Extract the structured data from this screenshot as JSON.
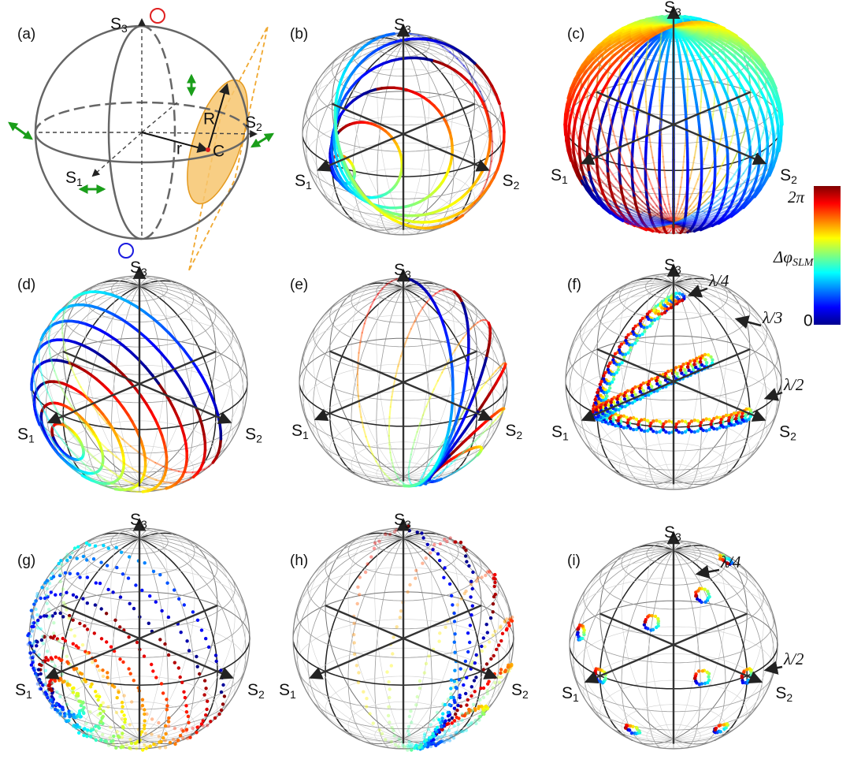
{
  "panels": [
    {
      "label": "(a)",
      "s1": {
        "base": "S",
        "sub": "1"
      },
      "s2": {
        "base": "S",
        "sub": "2"
      },
      "s3": {
        "base": "S",
        "sub": "3"
      },
      "annotations": [
        "R",
        "r",
        "C"
      ]
    },
    {
      "label": "(b)",
      "s1": {
        "base": "S",
        "sub": "1"
      },
      "s2": {
        "base": "S",
        "sub": "2"
      },
      "s3": {
        "base": "S",
        "sub": "3"
      }
    },
    {
      "label": "(c)",
      "s1": {
        "base": "S",
        "sub": "1"
      },
      "s2": {
        "base": "S",
        "sub": "2"
      },
      "s3": {
        "base": "S",
        "sub": "3"
      }
    },
    {
      "label": "(d)",
      "s1": {
        "base": "S",
        "sub": "1"
      },
      "s2": {
        "base": "S",
        "sub": "2"
      },
      "s3": {
        "base": "S",
        "sub": "3"
      }
    },
    {
      "label": "(e)",
      "s1": {
        "base": "S",
        "sub": "1"
      },
      "s2": {
        "base": "S",
        "sub": "2"
      },
      "s3": {
        "base": "S",
        "sub": "3"
      }
    },
    {
      "label": "(f)",
      "s1": {
        "base": "S",
        "sub": "1"
      },
      "s2": {
        "base": "S",
        "sub": "2"
      },
      "s3": {
        "base": "S",
        "sub": "3"
      },
      "annotations": [
        "λ/4",
        "λ/3",
        "λ/2"
      ]
    },
    {
      "label": "(g)",
      "s1": {
        "base": "S",
        "sub": "1"
      },
      "s2": {
        "base": "S",
        "sub": "2"
      },
      "s3": {
        "base": "S",
        "sub": "3"
      }
    },
    {
      "label": "(h)",
      "s1": {
        "base": "S",
        "sub": "1"
      },
      "s2": {
        "base": "S",
        "sub": "2"
      },
      "s3": {
        "base": "S",
        "sub": "3"
      }
    },
    {
      "label": "(i)",
      "s1": {
        "base": "S",
        "sub": "1"
      },
      "s2": {
        "base": "S",
        "sub": "2"
      },
      "s3": {
        "base": "S",
        "sub": "3"
      },
      "annotations": [
        "λ/4",
        "λ/2"
      ]
    }
  ],
  "colorbar": {
    "max": "2π",
    "min": "0",
    "title": {
      "base": "Δφ",
      "sub": "SLM"
    }
  }
}
